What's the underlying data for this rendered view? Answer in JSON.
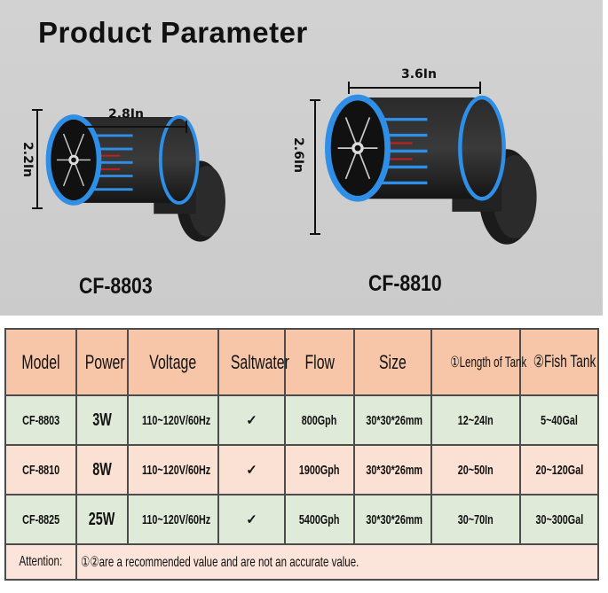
{
  "title": "Product Parameter",
  "products": [
    {
      "model": "CF-8803",
      "width": "2.8In",
      "height": "2.2In"
    },
    {
      "model": "CF-8810",
      "width": "3.6In",
      "height": "2.6In"
    }
  ],
  "table": {
    "headers": [
      "Model",
      "Power",
      "Voltage",
      "Saltwater",
      "Flow",
      "Size",
      "①Length of Tank",
      "②Fish Tank"
    ],
    "rows": [
      [
        "CF-8803",
        "3W",
        "110~120V/60Hz",
        "✓",
        "800Gph",
        "30*30*26mm",
        "12~24In",
        "5~40Gal"
      ],
      [
        "CF-8810",
        "8W",
        "110~120V/60Hz",
        "✓",
        "1900Gph",
        "30*30*26mm",
        "20~50In",
        "20~120Gal"
      ],
      [
        "CF-8825",
        "25W",
        "110~120V/60Hz",
        "✓",
        "5400Gph",
        "30*30*26mm",
        "30~70In",
        "30~300Gal"
      ]
    ],
    "attention_label": "Attention:",
    "attention_text": "①②are a recommended value and are not an accurate value."
  },
  "colors": {
    "header": "#f7c6a8",
    "green_row": "#e0ead9",
    "pink_row": "#fbe1d4",
    "ring": "#2f8fe6"
  }
}
